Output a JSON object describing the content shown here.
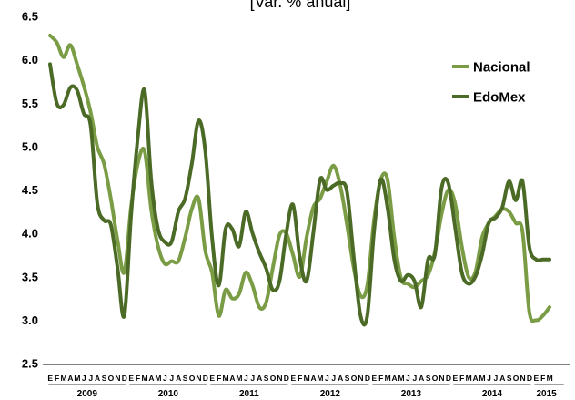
{
  "chart_data": {
    "type": "line",
    "title": "[Var. % anual]",
    "xlabel": "",
    "ylabel": "",
    "ylim": [
      2.5,
      6.5
    ],
    "yticks": [
      "2.5",
      "3.0",
      "3.5",
      "4.0",
      "4.5",
      "5.0",
      "5.5",
      "6.0",
      "6.5"
    ],
    "legend_position": "top-right",
    "grid": false,
    "month_labels": [
      "E",
      "F",
      "M",
      "A",
      "M",
      "J",
      "J",
      "A",
      "S",
      "O",
      "N",
      "D",
      "E",
      "F",
      "M",
      "A",
      "M",
      "J",
      "J",
      "A",
      "S",
      "O",
      "N",
      "D",
      "E",
      "F",
      "M",
      "A",
      "M",
      "J",
      "J",
      "A",
      "S",
      "O",
      "N",
      "D",
      "E",
      "F",
      "M",
      "A",
      "M",
      "J",
      "J",
      "A",
      "S",
      "O",
      "N",
      "D",
      "E",
      "F",
      "M",
      "A",
      "M",
      "J",
      "J",
      "A",
      "S",
      "O",
      "N",
      "D",
      "E",
      "F",
      "M",
      "A",
      "M",
      "J",
      "J",
      "A",
      "S",
      "O",
      "N",
      "D",
      "E",
      "F",
      "M"
    ],
    "years": [
      {
        "label": "2009",
        "months": 12
      },
      {
        "label": "2010",
        "months": 12
      },
      {
        "label": "2011",
        "months": 12
      },
      {
        "label": "2012",
        "months": 12
      },
      {
        "label": "2013",
        "months": 12
      },
      {
        "label": "2014",
        "months": 12
      },
      {
        "label": "2015",
        "months": 3
      }
    ],
    "series": [
      {
        "name": "Nacional",
        "color": "#7a9c45",
        "values": [
          6.28,
          6.2,
          6.03,
          6.17,
          5.95,
          5.7,
          5.4,
          5.0,
          4.8,
          4.4,
          3.92,
          3.55,
          4.3,
          4.8,
          4.95,
          4.27,
          3.85,
          3.65,
          3.68,
          3.68,
          3.95,
          4.28,
          4.4,
          3.8,
          3.55,
          3.05,
          3.35,
          3.25,
          3.3,
          3.55,
          3.4,
          3.15,
          3.2,
          3.6,
          3.98,
          4.0,
          3.75,
          3.5,
          3.95,
          4.3,
          4.4,
          4.6,
          4.78,
          4.55,
          4.1,
          3.6,
          3.28,
          3.4,
          4.15,
          4.62,
          4.62,
          3.95,
          3.48,
          3.42,
          3.38,
          3.45,
          3.52,
          3.78,
          4.22,
          4.5,
          4.35,
          3.85,
          3.5,
          3.55,
          3.95,
          4.12,
          4.2,
          4.28,
          4.25,
          4.12,
          4.02,
          3.1,
          3.0,
          3.05,
          3.15
        ]
      },
      {
        "name": "EdoMex",
        "color": "#4a6a26",
        "values": [
          5.95,
          5.5,
          5.48,
          5.68,
          5.65,
          5.38,
          5.25,
          4.35,
          4.15,
          4.1,
          3.6,
          3.05,
          4.2,
          5.1,
          5.65,
          4.6,
          4.05,
          3.9,
          3.9,
          4.25,
          4.4,
          4.8,
          5.3,
          4.95,
          3.95,
          3.4,
          4.05,
          4.05,
          3.85,
          4.25,
          4.0,
          3.78,
          3.6,
          3.35,
          3.45,
          4.0,
          4.33,
          3.72,
          3.45,
          4.0,
          4.62,
          4.5,
          4.55,
          4.58,
          4.48,
          3.72,
          3.05,
          3.05,
          4.02,
          4.62,
          4.3,
          3.7,
          3.45,
          3.52,
          3.45,
          3.15,
          3.7,
          3.75,
          4.52,
          4.58,
          4.08,
          3.55,
          3.42,
          3.5,
          3.75,
          4.12,
          4.18,
          4.3,
          4.6,
          4.38,
          4.6,
          3.85,
          3.7,
          3.7,
          3.7
        ]
      }
    ]
  }
}
